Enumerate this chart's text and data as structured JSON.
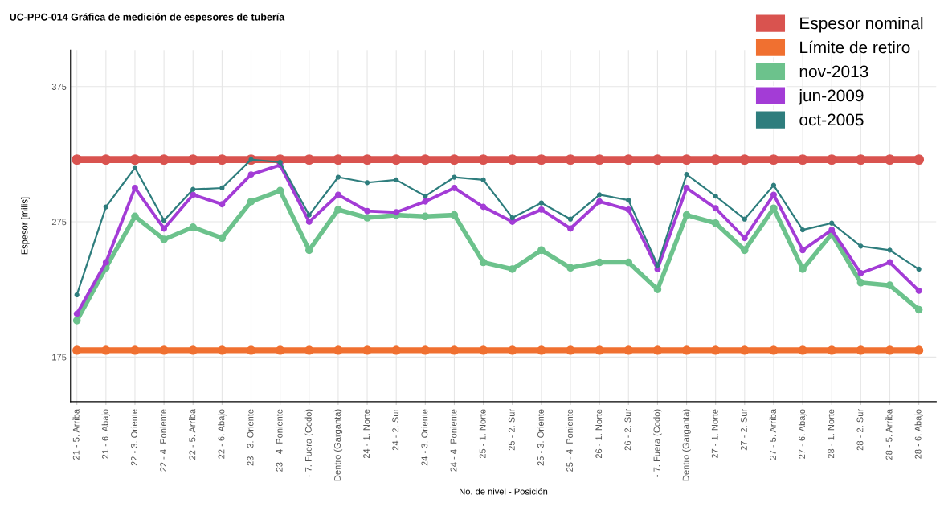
{
  "chart_data": {
    "type": "line",
    "title": "UC-PPC-014 Gráfica de medición de espesores de tubería",
    "xlabel": "No. de nivel - Posición",
    "ylabel": "Espesor [milis]",
    "categories": [
      "21 - 5. Arriba",
      "21 - 6. Abajo",
      "22 - 3. Oriente",
      "22 - 4. Poniente",
      "22 - 5. Arriba",
      "22 - 6. Abajo",
      "23 - 3. Oriente",
      "23 - 4. Poniente",
      "- 7. Fuera (Codo)",
      "Dentro (Garganta)",
      "24 - 1. Norte",
      "24 - 2. Sur",
      "24 - 3. Oriente",
      "24 - 4. Poniente",
      "25 - 1. Norte",
      "25 - 2. Sur",
      "25 - 3. Oriente",
      "25 - 4. Poniente",
      "26 - 1. Norte",
      "26 - 2. Sur",
      "- 7. Fuera (Codo)",
      "Dentro (Garganta)",
      "27 - 1. Norte",
      "27 - 2. Sur",
      "27 - 5. Arriba",
      "27 - 6. Abajo",
      "28 - 1. Norte",
      "28 - 2. Sur",
      "28 - 5. Arriba",
      "28 - 6. Abajo"
    ],
    "series": [
      {
        "name": "Espesor nominal",
        "color": "#d9534f",
        "values": [
          321,
          321,
          321,
          321,
          321,
          321,
          321,
          321,
          321,
          321,
          321,
          321,
          321,
          321,
          321,
          321,
          321,
          321,
          321,
          321,
          321,
          321,
          321,
          321,
          321,
          321,
          321,
          321,
          321,
          321
        ]
      },
      {
        "name": "Límite de retiro",
        "color": "#f07030",
        "values": [
          180,
          180,
          180,
          180,
          180,
          180,
          180,
          180,
          180,
          180,
          180,
          180,
          180,
          180,
          180,
          180,
          180,
          180,
          180,
          180,
          180,
          180,
          180,
          180,
          180,
          180,
          180,
          180,
          180,
          180
        ]
      },
      {
        "name": "nov-2013",
        "color": "#6cc28c",
        "values": [
          202,
          241,
          279,
          262,
          271,
          263,
          290,
          298,
          254,
          284,
          278,
          280,
          279,
          280,
          245,
          240,
          254,
          241,
          245,
          245,
          225,
          280,
          274,
          254,
          285,
          240,
          266,
          230,
          228,
          210
        ]
      },
      {
        "name": "jun-2009",
        "color": "#a33cd6",
        "values": [
          207,
          245,
          300,
          270,
          295,
          288,
          310,
          317,
          275,
          295,
          283,
          282,
          290,
          300,
          286,
          275,
          284,
          270,
          290,
          284,
          240,
          300,
          285,
          263,
          295,
          254,
          269,
          237,
          245,
          224
        ]
      },
      {
        "name": "oct-2005",
        "color": "#2e7d7d",
        "values": [
          221,
          286,
          315,
          276,
          299,
          300,
          321,
          319,
          280,
          308,
          304,
          306,
          294,
          308,
          306,
          278,
          289,
          277,
          295,
          291,
          243,
          310,
          294,
          277,
          302,
          269,
          274,
          257,
          254,
          240
        ]
      }
    ],
    "ylim": [
      142,
      402
    ],
    "yticks": [
      175,
      275,
      375
    ],
    "grid": true,
    "legend": "top right",
    "marker": "circle",
    "line_style": "solid"
  }
}
